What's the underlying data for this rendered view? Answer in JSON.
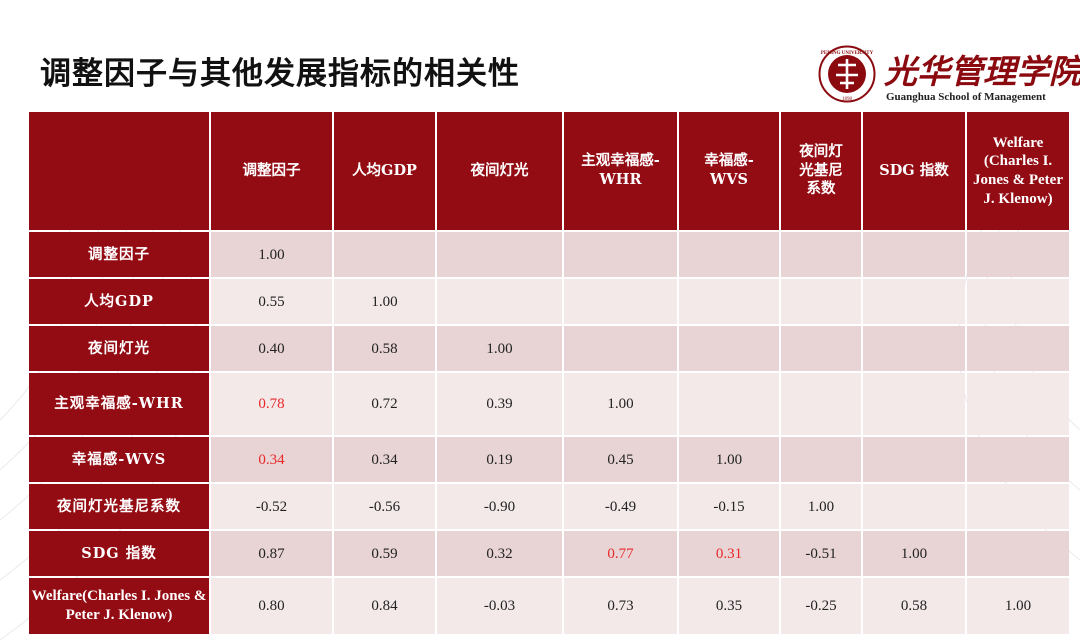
{
  "title": "调整因子与其他发展指标的相关性",
  "logo": {
    "cn_text": "光华管理学院",
    "en_text": "Guanghua School of Management",
    "seal_text": "PEKING UNIVERSITY",
    "seal_year": "1898"
  },
  "table": {
    "columns": [
      "调整因子",
      "人均GDP",
      "夜间灯光",
      "主观幸福感-WHR",
      "幸福感-WVS",
      "夜间灯光基尼系数",
      "SDG 指数",
      "Welfare (Charles I. Jones & Peter J. Klenow)"
    ],
    "rows": [
      {
        "label": "调整因子",
        "values": [
          "1.00",
          "",
          "",
          "",
          "",
          "",
          "",
          ""
        ]
      },
      {
        "label": "人均GDP",
        "values": [
          "0.55",
          "1.00",
          "",
          "",
          "",
          "",
          "",
          ""
        ]
      },
      {
        "label": "夜间灯光",
        "values": [
          "0.40",
          "0.58",
          "1.00",
          "",
          "",
          "",
          "",
          ""
        ]
      },
      {
        "label": "主观幸福感-WHR",
        "values": [
          "0.78",
          "0.72",
          "0.39",
          "1.00",
          "",
          "",
          "",
          ""
        ]
      },
      {
        "label": "幸福感-WVS",
        "values": [
          "0.34",
          "0.34",
          "0.19",
          "0.45",
          "1.00",
          "",
          "",
          ""
        ]
      },
      {
        "label": "夜间灯光基尼系数",
        "values": [
          "-0.52",
          "-0.56",
          "-0.90",
          "-0.49",
          "-0.15",
          "1.00",
          "",
          ""
        ]
      },
      {
        "label": "SDG 指数",
        "values": [
          "0.87",
          "0.59",
          "0.32",
          "0.77",
          "0.31",
          "-0.51",
          "1.00",
          ""
        ]
      },
      {
        "label": "Welfare(Charles I. Jones & Peter J. Klenow)",
        "values": [
          "0.80",
          "0.84",
          "-0.03",
          "0.73",
          "0.35",
          "-0.25",
          "0.58",
          "1.00"
        ]
      }
    ],
    "highlighted_cells": [
      [
        3,
        0
      ],
      [
        4,
        0
      ],
      [
        6,
        3
      ],
      [
        6,
        4
      ]
    ],
    "highlight_color": "#e8282b",
    "header_color": "#930b13"
  }
}
